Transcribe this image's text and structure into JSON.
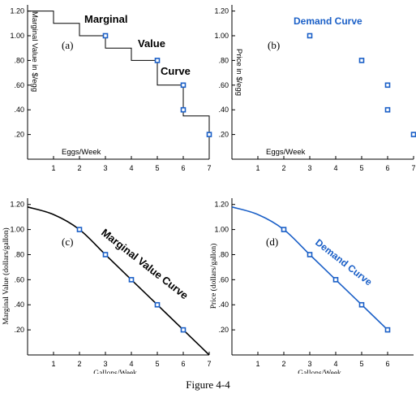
{
  "figure": {
    "caption": "Figure 4-4"
  },
  "colors": {
    "axis": "#000000",
    "curve_blue": "#1a5fc7",
    "marker": "#1a5fc7",
    "black": "#000000"
  },
  "chart_data": [
    {
      "id": "a",
      "type": "step",
      "panel_label": "(a)",
      "xlabel": "Eggs/Week",
      "ylabel": "Marginal Value in $/egg",
      "xlim": [
        0,
        7
      ],
      "ylim": [
        0,
        1.25
      ],
      "x_ticks": [
        1,
        2,
        3,
        4,
        5,
        6,
        7
      ],
      "y_ticks": [
        0.2,
        0.4,
        0.6,
        0.8,
        1.0,
        1.2
      ],
      "y_tick_labels": [
        ".20",
        ".40",
        ".60",
        ".80",
        "1.00",
        "1.20"
      ],
      "steps": [
        {
          "from": 0,
          "to": 1,
          "value": 1.2
        },
        {
          "from": 1,
          "to": 2,
          "value": 1.1
        },
        {
          "from": 2,
          "to": 3,
          "value": 1.0
        },
        {
          "from": 3,
          "to": 4,
          "value": 0.9
        },
        {
          "from": 4,
          "to": 5,
          "value": 0.8
        },
        {
          "from": 5,
          "to": 6,
          "value": 0.6
        },
        {
          "from": 6,
          "to": 7,
          "value": 0.35
        }
      ],
      "points": [
        {
          "x": 3,
          "y": 1.0
        },
        {
          "x": 5,
          "y": 0.8
        },
        {
          "x": 6,
          "y": 0.6
        },
        {
          "x": 6,
          "y": 0.4
        },
        {
          "x": 7,
          "y": 0.2
        }
      ],
      "curve_label_words": [
        "Marginal",
        "Value",
        "Curve"
      ],
      "curve_label_color": "#000000"
    },
    {
      "id": "b",
      "type": "scatter",
      "panel_label": "(b)",
      "xlabel": "Eggs/Week",
      "ylabel": "Price in $/egg",
      "xlim": [
        0,
        7
      ],
      "ylim": [
        0,
        1.25
      ],
      "x_ticks": [
        1,
        2,
        3,
        4,
        5,
        6,
        7
      ],
      "y_ticks": [
        0.2,
        0.4,
        0.6,
        0.8,
        1.0,
        1.2
      ],
      "y_tick_labels": [
        ".20",
        ".40",
        ".60",
        ".80",
        "1.00",
        "1.20"
      ],
      "points": [
        {
          "x": 3,
          "y": 1.0
        },
        {
          "x": 5,
          "y": 0.8
        },
        {
          "x": 6,
          "y": 0.6
        },
        {
          "x": 6,
          "y": 0.4
        },
        {
          "x": 7,
          "y": 0.2
        }
      ],
      "curve_label": "Demand Curve",
      "curve_label_color": "#1a5fc7"
    },
    {
      "id": "c",
      "type": "line",
      "panel_label": "(c)",
      "xlabel": "Gallons/Week",
      "ylabel": "Marginal Value (dollars/gallon)",
      "xlim": [
        0,
        7
      ],
      "ylim": [
        0,
        1.25
      ],
      "x_ticks": [
        1,
        2,
        3,
        4,
        5,
        6,
        7
      ],
      "y_ticks": [
        0.2,
        0.4,
        0.6,
        0.8,
        1.0,
        1.2
      ],
      "y_tick_labels": [
        ".20",
        ".40",
        ".60",
        ".80",
        "1.00",
        "1.20"
      ],
      "curve": [
        {
          "x": 0,
          "y": 1.18
        },
        {
          "x": 1,
          "y": 1.12
        },
        {
          "x": 2,
          "y": 1.0
        },
        {
          "x": 3,
          "y": 0.8
        },
        {
          "x": 4,
          "y": 0.6
        },
        {
          "x": 5,
          "y": 0.4
        },
        {
          "x": 6,
          "y": 0.2
        },
        {
          "x": 6.6,
          "y": 0.08
        },
        {
          "x": 7,
          "y": 0.0
        }
      ],
      "points": [
        {
          "x": 2,
          "y": 1.0
        },
        {
          "x": 3,
          "y": 0.8
        },
        {
          "x": 4,
          "y": 0.6
        },
        {
          "x": 5,
          "y": 0.4
        },
        {
          "x": 6,
          "y": 0.2
        }
      ],
      "curve_label": "Marginal Value Curve",
      "curve_color": "#000000",
      "curve_label_color": "#000000"
    },
    {
      "id": "d",
      "type": "line",
      "panel_label": "(d)",
      "xlabel": "Gallons/Week",
      "ylabel": "Price (dollars/gallon)",
      "xlim": [
        0,
        7
      ],
      "ylim": [
        0,
        1.25
      ],
      "x_ticks": [
        1,
        2,
        3,
        4,
        5,
        6
      ],
      "y_ticks": [
        0.2,
        0.4,
        0.6,
        0.8,
        1.0,
        1.2
      ],
      "y_tick_labels": [
        ".20",
        ".40",
        ".60",
        ".80",
        "1.00",
        "1.20"
      ],
      "curve": [
        {
          "x": 0,
          "y": 1.18
        },
        {
          "x": 1,
          "y": 1.12
        },
        {
          "x": 2,
          "y": 1.0
        },
        {
          "x": 3,
          "y": 0.8
        },
        {
          "x": 4,
          "y": 0.6
        },
        {
          "x": 5,
          "y": 0.4
        },
        {
          "x": 6,
          "y": 0.2
        }
      ],
      "points": [
        {
          "x": 2,
          "y": 1.0
        },
        {
          "x": 3,
          "y": 0.8
        },
        {
          "x": 4,
          "y": 0.6
        },
        {
          "x": 5,
          "y": 0.4
        },
        {
          "x": 6,
          "y": 0.2
        }
      ],
      "curve_label": "Demand Curve",
      "curve_color": "#1a5fc7",
      "curve_label_color": "#1a5fc7"
    }
  ]
}
